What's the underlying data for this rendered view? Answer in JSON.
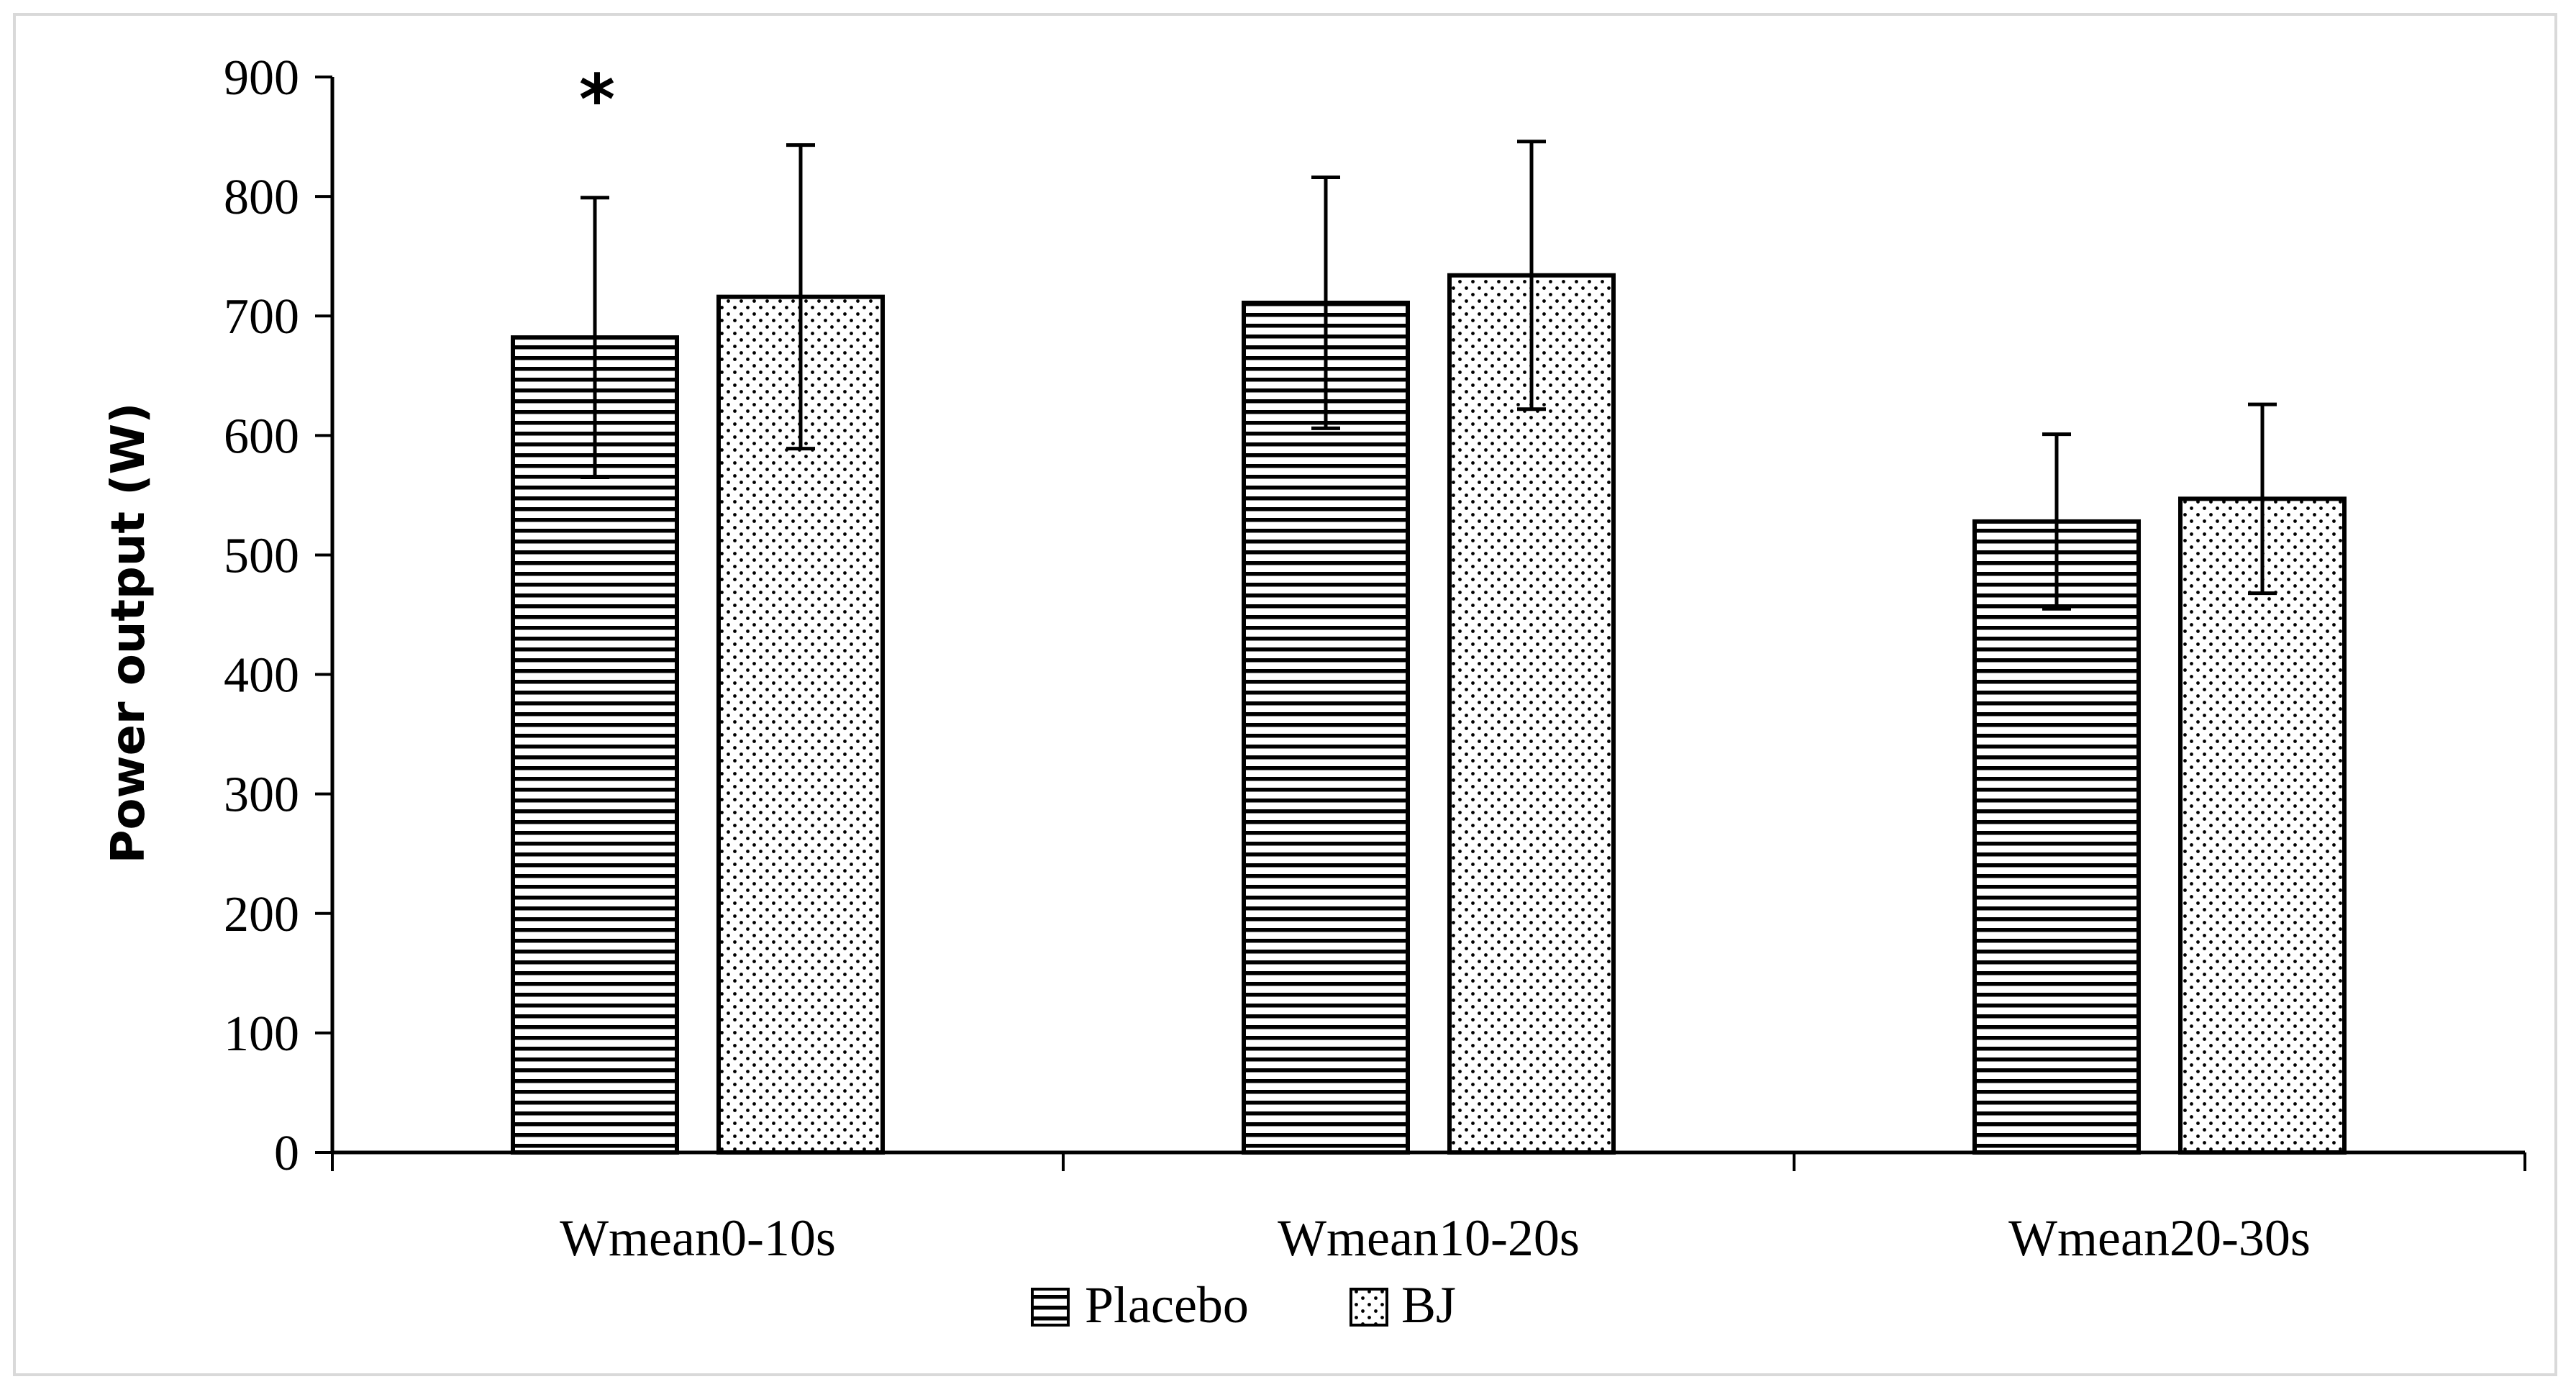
{
  "chart_data": {
    "type": "bar",
    "title": "",
    "xlabel": "",
    "ylabel": "Power output (W)",
    "ylim": [
      0,
      900
    ],
    "yticks": [
      0,
      100,
      200,
      300,
      400,
      500,
      600,
      700,
      800,
      900
    ],
    "grid": false,
    "legend_position": "bottom-center",
    "categories": [
      "Wmean0-10s",
      "Wmean10-20s",
      "Wmean20-30s"
    ],
    "series": [
      {
        "name": "Placebo",
        "pattern": "horizontal-stripes",
        "values": [
          682,
          711,
          528
        ],
        "error": [
          117,
          105,
          73
        ]
      },
      {
        "name": "BJ",
        "pattern": "dots",
        "values": [
          716,
          734,
          547
        ],
        "error": [
          127,
          112,
          79
        ]
      }
    ],
    "annotations": [
      {
        "text": "*",
        "category": "Wmean0-10s",
        "series": "Placebo"
      }
    ]
  },
  "colors": {
    "frame_border": "#d9d9d9",
    "axis": "#000000",
    "bar_stroke": "#000000",
    "bar_fill": "#ffffff"
  }
}
